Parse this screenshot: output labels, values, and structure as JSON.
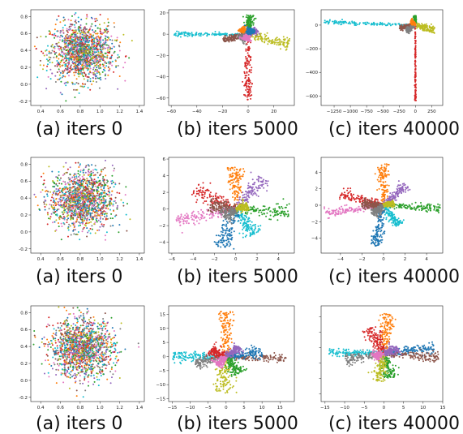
{
  "palette": [
    "#1f77b4",
    "#ff7f0e",
    "#2ca02c",
    "#d62728",
    "#9467bd",
    "#8c564b",
    "#e377c2",
    "#7f7f7f",
    "#bcbd22",
    "#17becf"
  ],
  "captions": [
    [
      "(a) iters 0",
      "(b) iters 5000",
      "(c) iters 40000"
    ],
    [
      "(a) iters 0",
      "(b) iters 5000",
      "(c) iters 40000"
    ],
    [
      "(a) iters 0",
      "(b) iters 5000",
      "(c) iters 40000"
    ]
  ],
  "chart_data": [
    {
      "type": "scatter",
      "row": 1,
      "col": "a",
      "caption": "(a) iters 0",
      "xlim": [
        0.3,
        1.45
      ],
      "ylim": [
        -0.25,
        0.88
      ],
      "xticks": [
        "0.4",
        "0.6",
        "0.8",
        "1.0",
        "1.2",
        "1.4"
      ],
      "xtick_values": [
        0.4,
        0.6,
        0.8,
        1.0,
        1.2,
        1.4
      ],
      "yticks": [
        "-0.2",
        "0.0",
        "0.2",
        "0.4",
        "0.6",
        "0.8"
      ],
      "ytick_values": [
        -0.2,
        0.0,
        0.2,
        0.4,
        0.6,
        0.8
      ],
      "pattern": "blob",
      "center": [
        0.82,
        0.38
      ],
      "spread": [
        0.16,
        0.17
      ]
    },
    {
      "type": "scatter",
      "row": 1,
      "col": "b",
      "caption": "(b) iters 5000",
      "xlim": [
        -62,
        36
      ],
      "ylim": [
        -67,
        23
      ],
      "xticks": [
        "−60",
        "−40",
        "−20",
        "0",
        "20"
      ],
      "xtick_values": [
        -60,
        -40,
        -20,
        0,
        20
      ],
      "yticks": [
        "20",
        "0",
        "−20",
        "−40",
        "−60"
      ],
      "ytick_values": [
        20,
        0,
        -20,
        -40,
        -60
      ],
      "pattern": "arms",
      "arms": [
        {
          "color": 9,
          "angle": 180,
          "length": 58,
          "width": 1.2
        },
        {
          "color": 8,
          "angle": -18,
          "length": 33,
          "width": 3
        },
        {
          "color": 3,
          "angle": -90,
          "length": 62,
          "width": 2
        },
        {
          "color": 2,
          "angle": 85,
          "length": 18,
          "width": 2
        },
        {
          "color": 5,
          "angle": 195,
          "length": 20,
          "width": 2
        },
        {
          "color": 1,
          "angle": 135,
          "length": 8,
          "width": 2
        },
        {
          "color": 7,
          "angle": 215,
          "length": 8,
          "width": 2
        },
        {
          "color": 4,
          "angle": 30,
          "length": 8,
          "width": 2
        },
        {
          "color": 6,
          "angle": 250,
          "length": 6,
          "width": 2
        },
        {
          "color": 0,
          "angle": 60,
          "length": 6,
          "width": 2
        }
      ]
    },
    {
      "type": "scatter",
      "row": 1,
      "col": "c",
      "caption": "(c) iters 40000",
      "xlim": [
        -1450,
        420
      ],
      "ylim": [
        -680,
        130
      ],
      "xticks": [
        "−1250",
        "−1000",
        "−750",
        "−500",
        "−250",
        "0",
        "250"
      ],
      "xtick_values": [
        -1250,
        -1000,
        -750,
        -500,
        -250,
        0,
        250
      ],
      "yticks": [
        "0",
        "−200",
        "−400",
        "−600"
      ],
      "ytick_values": [
        0,
        -200,
        -400,
        -600
      ],
      "pattern": "arms",
      "arms": [
        {
          "color": 9,
          "angle": 179,
          "length": 1400,
          "width": 10
        },
        {
          "color": 8,
          "angle": -8,
          "length": 300,
          "width": 20
        },
        {
          "color": 3,
          "angle": -90,
          "length": 640,
          "width": 6
        },
        {
          "color": 2,
          "angle": 95,
          "length": 80,
          "width": 10
        },
        {
          "color": 5,
          "angle": 185,
          "length": 250,
          "width": 15
        },
        {
          "color": 7,
          "angle": 200,
          "length": 150,
          "width": 15
        },
        {
          "color": 1,
          "angle": 150,
          "length": 80,
          "width": 10
        }
      ]
    },
    {
      "type": "scatter",
      "row": 2,
      "col": "a",
      "caption": "(a) iters 0",
      "xlim": [
        0.3,
        1.45
      ],
      "ylim": [
        -0.25,
        0.88
      ],
      "xticks": [
        "0.4",
        "0.6",
        "0.8",
        "1.0",
        "1.2",
        "1.4"
      ],
      "xtick_values": [
        0.4,
        0.6,
        0.8,
        1.0,
        1.2,
        1.4
      ],
      "yticks": [
        "-0.2",
        "0.0",
        "0.2",
        "0.4",
        "0.6",
        "0.8"
      ],
      "ytick_values": [
        -0.2,
        0.0,
        0.2,
        0.4,
        0.6,
        0.8
      ],
      "pattern": "blob",
      "center": [
        0.82,
        0.38
      ],
      "spread": [
        0.16,
        0.17
      ]
    },
    {
      "type": "scatter",
      "row": 2,
      "col": "b",
      "caption": "(b) iters 5000",
      "xlim": [
        -6.3,
        5.5
      ],
      "ylim": [
        -5.3,
        6.2
      ],
      "xticks": [
        "−6",
        "−4",
        "−2",
        "0",
        "2",
        "4"
      ],
      "xtick_values": [
        -6,
        -4,
        -2,
        0,
        2,
        4
      ],
      "yticks": [
        "6",
        "4",
        "2",
        "0",
        "−2",
        "−4"
      ],
      "ytick_values": [
        6,
        4,
        2,
        0,
        -2,
        -4
      ],
      "pattern": "arms",
      "arms": [
        {
          "color": 1,
          "angle": 90,
          "length": 5,
          "width": 0.5
        },
        {
          "color": 4,
          "angle": 55,
          "length": 4.5,
          "width": 0.5
        },
        {
          "color": 2,
          "angle": -5,
          "length": 5,
          "width": 0.45
        },
        {
          "color": 9,
          "angle": -60,
          "length": 3.5,
          "width": 0.45
        },
        {
          "color": 0,
          "angle": -105,
          "length": 4.8,
          "width": 0.55
        },
        {
          "color": 6,
          "angle": 195,
          "length": 5.8,
          "width": 0.45
        },
        {
          "color": 3,
          "angle": 150,
          "length": 4.5,
          "width": 0.55
        },
        {
          "color": 5,
          "angle": 170,
          "length": 2.5,
          "width": 0.5
        },
        {
          "color": 7,
          "angle": 220,
          "length": 1.5,
          "width": 0.5
        },
        {
          "color": 8,
          "angle": 20,
          "length": 1.2,
          "width": 0.35
        }
      ]
    },
    {
      "type": "scatter",
      "row": 2,
      "col": "c",
      "caption": "(c) iters 40000",
      "xlim": [
        -5.8,
        5.5
      ],
      "ylim": [
        -5.8,
        5.8
      ],
      "xticks": [
        "−4",
        "−2",
        "0",
        "2",
        "4"
      ],
      "xtick_values": [
        -4,
        -2,
        0,
        2,
        4
      ],
      "yticks": [
        "4",
        "2",
        "0",
        "−2",
        "−4"
      ],
      "ytick_values": [
        4,
        2,
        0,
        -2,
        -4
      ],
      "pattern": "arms",
      "arms": [
        {
          "color": 1,
          "angle": 90,
          "length": 5,
          "width": 0.35
        },
        {
          "color": 4,
          "angle": 50,
          "length": 3.3,
          "width": 0.3
        },
        {
          "color": 2,
          "angle": -5,
          "length": 5.3,
          "width": 0.25
        },
        {
          "color": 9,
          "angle": -60,
          "length": 2.8,
          "width": 0.3
        },
        {
          "color": 0,
          "angle": -100,
          "length": 5,
          "width": 0.3
        },
        {
          "color": 6,
          "angle": 190,
          "length": 5.5,
          "width": 0.3
        },
        {
          "color": 3,
          "angle": 160,
          "length": 4.2,
          "width": 0.4
        },
        {
          "color": 5,
          "angle": 175,
          "length": 2,
          "width": 0.3
        },
        {
          "color": 7,
          "angle": 230,
          "length": 1.5,
          "width": 0.3
        },
        {
          "color": 8,
          "angle": 15,
          "length": 1,
          "width": 0.25
        }
      ]
    },
    {
      "type": "scatter",
      "row": 3,
      "col": "a",
      "caption": "(a) iters 0",
      "xlim": [
        0.3,
        1.45
      ],
      "ylim": [
        -0.25,
        0.88
      ],
      "xticks": [
        "0.4",
        "0.6",
        "0.8",
        "1.0",
        "1.2",
        "1.4"
      ],
      "xtick_values": [
        0.4,
        0.6,
        0.8,
        1.0,
        1.2,
        1.4
      ],
      "yticks": [
        "-0.2",
        "0.0",
        "0.2",
        "0.4",
        "0.6",
        "0.8"
      ],
      "ytick_values": [
        -0.2,
        0.0,
        0.2,
        0.4,
        0.6,
        0.8
      ],
      "pattern": "blob",
      "center": [
        0.82,
        0.38
      ],
      "spread": [
        0.16,
        0.17
      ]
    },
    {
      "type": "scatter",
      "row": 3,
      "col": "b",
      "caption": "(b) iters 5000",
      "xlim": [
        -16,
        19
      ],
      "ylim": [
        -16,
        18
      ],
      "xticks": [
        "−15",
        "−10",
        "−5",
        "0",
        "5",
        "10",
        "15"
      ],
      "xtick_values": [
        -15,
        -10,
        -5,
        0,
        5,
        10,
        15
      ],
      "yticks": [
        "15",
        "10",
        "5",
        "0",
        "−5",
        "−10",
        "−15"
      ],
      "ytick_values": [
        15,
        10,
        5,
        0,
        -5,
        -10,
        -15
      ],
      "pattern": "arms",
      "arms": [
        {
          "color": 1,
          "angle": 90,
          "length": 16,
          "width": 1.2
        },
        {
          "color": 9,
          "angle": 180,
          "length": 15,
          "width": 1
        },
        {
          "color": 5,
          "angle": -3,
          "length": 17,
          "width": 1
        },
        {
          "color": 0,
          "angle": 10,
          "length": 10,
          "width": 1.2
        },
        {
          "color": 8,
          "angle": -95,
          "length": 13,
          "width": 1.5
        },
        {
          "color": 2,
          "angle": -60,
          "length": 7,
          "width": 1.2
        },
        {
          "color": 7,
          "angle": 195,
          "length": 9,
          "width": 1
        },
        {
          "color": 3,
          "angle": 150,
          "length": 5,
          "width": 1.2
        },
        {
          "color": 4,
          "angle": 40,
          "length": 5,
          "width": 1
        },
        {
          "color": 6,
          "angle": 230,
          "length": 4,
          "width": 1
        }
      ]
    },
    {
      "type": "scatter",
      "row": 3,
      "col": "c",
      "caption": "(c) iters 40000",
      "xlim": [
        -16,
        15
      ],
      "ylim": [
        -15.5,
        15.5
      ],
      "xticks": [
        "−15",
        "−10",
        "−5",
        "0",
        "5",
        "10",
        "15"
      ],
      "xtick_values": [
        -15,
        -10,
        -5,
        0,
        5,
        10,
        15
      ],
      "yticks": [
        "",
        "",
        "",
        "",
        "",
        ""
      ],
      "ytick_values": [
        12,
        7,
        2,
        -3,
        -8,
        -13
      ],
      "pattern": "arms",
      "arms": [
        {
          "color": 1,
          "angle": 85,
          "length": 13,
          "width": 1
        },
        {
          "color": 3,
          "angle": 115,
          "length": 9,
          "width": 1.3
        },
        {
          "color": 9,
          "angle": 178,
          "length": 14,
          "width": 0.8
        },
        {
          "color": 0,
          "angle": 8,
          "length": 13,
          "width": 1
        },
        {
          "color": 5,
          "angle": -5,
          "length": 14,
          "width": 0.9
        },
        {
          "color": 7,
          "angle": 190,
          "length": 10,
          "width": 1
        },
        {
          "color": 2,
          "angle": -80,
          "length": 8,
          "width": 1.2
        },
        {
          "color": 8,
          "angle": -100,
          "length": 9,
          "width": 1
        },
        {
          "color": 4,
          "angle": 30,
          "length": 4,
          "width": 1
        },
        {
          "color": 6,
          "angle": 200,
          "length": 3,
          "width": 1
        }
      ]
    }
  ]
}
